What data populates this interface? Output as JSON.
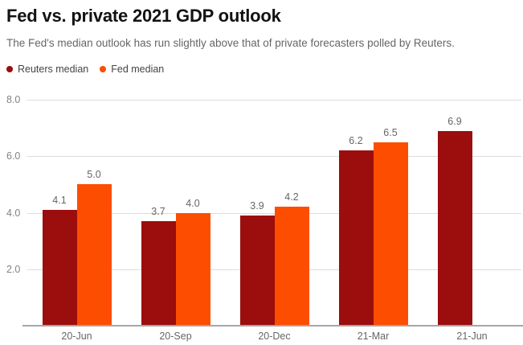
{
  "header": {
    "title": "Fed vs. private 2021 GDP outlook",
    "subtitle": "The Fed's median outlook has run slightly above that of private forecasters polled by Reuters."
  },
  "chart_data": {
    "type": "bar",
    "title": "Fed vs. private 2021 GDP outlook",
    "subtitle": "The Fed's median outlook has run slightly above that of private forecasters polled by Reuters.",
    "categories": [
      "20-Jun",
      "20-Sep",
      "20-Dec",
      "21-Mar",
      "21-Jun"
    ],
    "series": [
      {
        "name": "Reuters median",
        "color": "#9C0D0D",
        "values": [
          4.1,
          3.7,
          3.9,
          6.2,
          6.9
        ],
        "labels": [
          "4.1",
          "3.7",
          "3.9",
          "6.2",
          "6.9"
        ]
      },
      {
        "name": "Fed median",
        "color": "#FC4D00",
        "values": [
          5.0,
          4.0,
          4.2,
          6.5,
          null
        ],
        "labels": [
          "5.0",
          "4.0",
          "4.2",
          "6.5",
          null
        ]
      }
    ],
    "xlabel": "",
    "ylabel": "",
    "ylim": [
      0,
      8
    ],
    "yticks": [
      2.0,
      4.0,
      6.0,
      8.0
    ],
    "ytick_labels": [
      "2.0",
      "4.0",
      "6.0",
      "8.0"
    ],
    "grid": true,
    "value_labels": true,
    "legend_position": "top-left"
  }
}
